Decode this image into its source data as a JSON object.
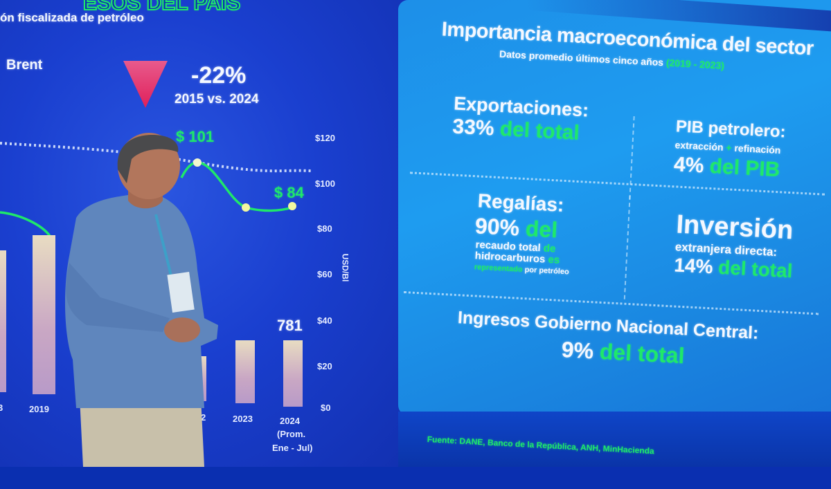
{
  "left_slide": {
    "title_partial": "ESOS DEL PAIS",
    "subtitle_partial": "ón fiscalizada de petróleo",
    "brent_label": "Brent",
    "change_value": "-22%",
    "change_period": "2015 vs. 2024",
    "price_label_high": "$ 101",
    "price_label_last": "$ 84",
    "y_axis_ticks": [
      "$120",
      "$100",
      "$80",
      "$60",
      "$40",
      "$20",
      "$0"
    ],
    "y_axis_unit": "USD/Bl",
    "bar_value_2024": "781",
    "x_labels": {
      "partial_left": "3",
      "y2019": "2019",
      "partial_mid": "2",
      "y2023": "2023",
      "y2024": "2024",
      "y2024_note1": "(Prom.",
      "y2024_note2": "Ene - Jul)"
    },
    "colors": {
      "background": "#1a3fcf",
      "line": "#1fe86a",
      "triangle": "#e8306a",
      "bars": "#d8c0c8"
    }
  },
  "right_slide": {
    "title": "Importancia macroeconómica del sector",
    "subtitle": "Datos promedio últimos cinco años",
    "subtitle_years": "(2019 - 2023)",
    "exports": {
      "heading": "Exportaciones:",
      "value": "33%",
      "suffix": "del total"
    },
    "pib": {
      "heading": "PIB petrolero:",
      "sub1": "extracción",
      "sub_plus": "+",
      "sub2": "refinación",
      "value": "4%",
      "suffix": "del PIB"
    },
    "royalties": {
      "heading": "Regalías:",
      "value": "90%",
      "suffix": "del",
      "line1": "recaudo total",
      "line1_g": "de",
      "line2": "hidrocarburos",
      "line2_g": "es",
      "line3_g": "representado",
      "line3": "por petróleo"
    },
    "investment": {
      "heading": "Inversión",
      "sub": "extranjera directa:",
      "value": "14%",
      "suffix": "del total"
    },
    "income": {
      "heading": "Ingresos Gobierno Nacional Central:",
      "value": "9%",
      "suffix": "del total"
    },
    "source": "Fuente: DANE, Banco de la República, ANH, MinHacienda",
    "colors": {
      "background": "#1e9cf0",
      "accent": "#1fe86a"
    }
  }
}
